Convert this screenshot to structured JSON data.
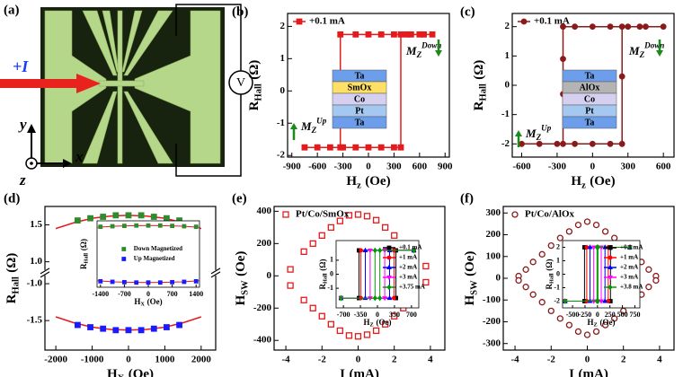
{
  "device": {
    "panel": "(a)",
    "current": "+I",
    "meter": "V",
    "axes": [
      "y",
      "x",
      "z"
    ]
  },
  "chart_data": [
    {
      "type": "line",
      "panel": "(b)",
      "xlabel": {
        "main": "H",
        "sub": "z",
        "unit": "(Oe)"
      },
      "ylabel": {
        "main": "R",
        "sub": "Hall",
        "unit": "(Ω)"
      },
      "xlim": [
        -950,
        950
      ],
      "ylim": [
        -2.05,
        2.4
      ],
      "xticks": [
        -900,
        -600,
        -300,
        0,
        300,
        600,
        900
      ],
      "yticks": [
        -2,
        -1,
        0,
        1,
        2
      ],
      "legend": "upper left",
      "series": [
        {
          "name": "+0.1 mA",
          "color": "#e41a1c",
          "marker": "square",
          "x": [
            -750,
            -600,
            -450,
            -300,
            -150,
            0,
            150,
            300,
            380,
            380,
            500,
            650,
            750,
            600,
            450,
            300,
            150,
            0,
            -150,
            -330,
            -330
          ],
          "values": [
            -1.75,
            -1.75,
            -1.75,
            -1.75,
            -1.75,
            -1.75,
            -1.75,
            -1.75,
            -1.75,
            1.75,
            1.75,
            1.75,
            1.75,
            1.75,
            1.75,
            1.75,
            1.75,
            1.75,
            1.75,
            1.75,
            -1.75
          ]
        }
      ],
      "stack": [
        {
          "label": "Ta",
          "color": "#6d9eeb"
        },
        {
          "label": "SmOx",
          "color": "#ffe066"
        },
        {
          "label": "Co",
          "color": "#d5d0f0"
        },
        {
          "label": "Pt",
          "color": "#a4c8f0"
        },
        {
          "label": "Ta",
          "color": "#6d9eeb"
        }
      ],
      "annotations": [
        {
          "main": "M",
          "sub": "Z",
          "sup": "Down"
        },
        {
          "main": "M",
          "sub": "Z",
          "sup": "Up"
        }
      ]
    },
    {
      "type": "line",
      "panel": "(c)",
      "xlabel": {
        "main": "H",
        "sub": "z",
        "unit": "(Oe)"
      },
      "ylabel": {
        "main": "R",
        "sub": "Hall",
        "unit": "(Ω)"
      },
      "xlim": [
        -680,
        690
      ],
      "ylim": [
        -2.45,
        2.45
      ],
      "xticks": [
        -600,
        -300,
        0,
        300,
        600
      ],
      "yticks": [
        -2,
        -1,
        0,
        1,
        2
      ],
      "legend": "upper left",
      "series": [
        {
          "name": "+0.1 mA",
          "color": "#8b1a1a",
          "marker": "circle",
          "x": [
            -600,
            -450,
            -300,
            -150,
            0,
            150,
            250,
            250,
            250,
            400,
            600,
            450,
            300,
            150,
            0,
            -150,
            -250,
            -250,
            -250,
            -250
          ],
          "values": [
            -2,
            -2,
            -2,
            -2,
            -2,
            -2,
            -2,
            0.3,
            2,
            2,
            2,
            2,
            2,
            2,
            2,
            2,
            2,
            0.9,
            -0.3,
            -2
          ]
        }
      ],
      "stack": [
        {
          "label": "Ta",
          "color": "#6d9eeb"
        },
        {
          "label": "AlOx",
          "color": "#b4b4b4"
        },
        {
          "label": "Co",
          "color": "#d5d0f0"
        },
        {
          "label": "Pt",
          "color": "#a4c8f0"
        },
        {
          "label": "Ta",
          "color": "#6d9eeb"
        }
      ],
      "annotations": [
        {
          "main": "M",
          "sub": "Z",
          "sup": "Down"
        },
        {
          "main": "M",
          "sub": "Z",
          "sup": "Up"
        }
      ]
    },
    {
      "type": "line",
      "panel": "(d)",
      "xlabel": {
        "main": "H",
        "sub": "X",
        "unit": "(Oe)"
      },
      "ylabel": {
        "main": "R",
        "sub": "Hall",
        "unit": "(Ω)"
      },
      "xlim": [
        -2300,
        2400
      ],
      "ylim": [
        -1.9,
        1.75
      ],
      "ybreak": [
        -0.9,
        0.9
      ],
      "xticks": [
        -2000,
        -1000,
        0,
        1000,
        2000
      ],
      "yticks": [
        -1.5,
        {
          "value": -1,
          "label": "-1.0"
        },
        {
          "value": 1,
          "label": "1.0"
        },
        1.5
      ],
      "series": [
        {
          "color": "#e41a1c",
          "marker": "none",
          "x": [
            -2000,
            -1500,
            -1000,
            -500,
            0,
            500,
            1000,
            1500,
            2000
          ],
          "values": [
            1.45,
            1.53,
            1.59,
            1.62,
            1.63,
            1.62,
            1.59,
            1.53,
            1.45
          ]
        },
        {
          "color": "#e41a1c",
          "marker": "none",
          "x": [
            -2000,
            -1500,
            -1000,
            -500,
            0,
            500,
            1000,
            1500,
            2000
          ],
          "values": [
            -1.45,
            -1.53,
            -1.59,
            -1.62,
            -1.63,
            -1.62,
            -1.59,
            -1.53,
            -1.45
          ]
        },
        {
          "name": "Down Magnetized",
          "color": "#2e8b2e",
          "marker": "square",
          "line": false,
          "x": [
            -1400,
            -1050,
            -700,
            -350,
            0,
            350,
            700,
            1050,
            1400
          ],
          "values": [
            1.56,
            1.59,
            1.61,
            1.63,
            1.63,
            1.63,
            1.61,
            1.59,
            1.56
          ]
        },
        {
          "name": "Up Magnetized",
          "color": "#1a1aff",
          "marker": "square",
          "line": false,
          "x": [
            -1400,
            -1050,
            -700,
            -350,
            0,
            350,
            700,
            1050,
            1400
          ],
          "values": [
            -1.56,
            -1.59,
            -1.61,
            -1.63,
            -1.63,
            -1.63,
            -1.61,
            -1.59,
            -1.56
          ]
        }
      ],
      "inset": {
        "type": "line",
        "xlim": [
          -1500,
          1500
        ],
        "ylim": [
          -1.9,
          1.9
        ],
        "xticks": [
          -1400,
          -700,
          0,
          700,
          1400
        ],
        "xlabel": {
          "main": "H",
          "sub": "X",
          "unit": "(Oe)"
        },
        "ylabel": {
          "main": "R",
          "sub": "Hall",
          "unit": "(Ω)"
        },
        "legend": "center"
      }
    },
    {
      "type": "scatter",
      "panel": "(e)",
      "xlabel": {
        "main": "I",
        "unit": "(mA)"
      },
      "ylabel": {
        "main": "H",
        "sub": "SW",
        "unit": "(Oe)"
      },
      "xlim": [
        -4.65,
        4.8
      ],
      "ylim": [
        -460,
        430
      ],
      "xticks": [
        -4,
        -2,
        0,
        2,
        4
      ],
      "yticks": [
        -400,
        -200,
        0,
        200,
        400
      ],
      "legend": "upper left",
      "series": [
        {
          "name": "Pt/Co/SmOx",
          "color": "#e41a1c",
          "marker": "square",
          "open": true,
          "x": [
            -3.75,
            -3,
            -2.5,
            -2,
            -1.5,
            -1,
            -0.5,
            0,
            0.5,
            1,
            1.5,
            2,
            2.5,
            3,
            3.75,
            3.75,
            3,
            2.5,
            2,
            1.5,
            1,
            0.5,
            0,
            -0.5,
            -1,
            -1.5,
            -2,
            -2.5,
            -3,
            -3.75
          ],
          "values": [
            40,
            150,
            200,
            250,
            300,
            340,
            375,
            380,
            370,
            345,
            300,
            250,
            200,
            150,
            60,
            -40,
            -150,
            -200,
            -250,
            -300,
            -340,
            -365,
            -375,
            -370,
            -340,
            -300,
            -250,
            -200,
            -150,
            -60
          ]
        }
      ],
      "inset": {
        "type": "line",
        "xlim": [
          -850,
          850
        ],
        "ylim": [
          -2.4,
          2.4
        ],
        "xticks": [
          -700,
          -350,
          0,
          350,
          700
        ],
        "yticks": [
          -1,
          0,
          1
        ],
        "xlabel": {
          "main": "H",
          "sub": "Z",
          "unit": "(Oe)"
        },
        "ylabel": {
          "main": "R",
          "sub": "Hall",
          "unit": "(Ω)"
        },
        "legend": "right",
        "series": [
          {
            "name": "+0.1 mA",
            "color": "#000000",
            "marker": "square",
            "x": [
              -750,
              380,
              380,
              750,
              -380,
              -380
            ],
            "values": [
              -1.7,
              -1.7,
              1.7,
              1.7,
              1.7,
              -1.7
            ]
          },
          {
            "name": "+1 mA",
            "color": "#ff0000",
            "marker": "circle",
            "x": [
              -750,
              340,
              340,
              750,
              -340,
              -340
            ],
            "values": [
              -1.7,
              -1.7,
              1.7,
              1.7,
              1.7,
              -1.7
            ]
          },
          {
            "name": "+2 mA",
            "color": "#0000ff",
            "marker": "triangle-up",
            "x": [
              -750,
              250,
              250,
              750,
              -250,
              -250
            ],
            "values": [
              -1.7,
              -1.7,
              1.7,
              1.7,
              1.7,
              -1.7
            ]
          },
          {
            "name": "+3 mA",
            "color": "#ff00ff",
            "marker": "triangle-down",
            "x": [
              -750,
              150,
              150,
              750,
              -150,
              -150
            ],
            "values": [
              -1.7,
              -1.7,
              1.7,
              1.7,
              1.7,
              -1.7
            ]
          },
          {
            "name": "+3.75 mA",
            "color": "#009900",
            "marker": "diamond",
            "x": [
              -750,
              50,
              50,
              750,
              -50,
              -50
            ],
            "values": [
              -1.7,
              -1.7,
              1.7,
              1.7,
              1.7,
              -1.7
            ]
          }
        ]
      }
    },
    {
      "type": "scatter",
      "panel": "(f)",
      "xlabel": {
        "main": "I",
        "unit": "(mA)"
      },
      "ylabel": {
        "main": "H",
        "sub": "SW",
        "unit": "(Oe)"
      },
      "xlim": [
        -4.65,
        4.8
      ],
      "ylim": [
        -330,
        330
      ],
      "xticks": [
        -4,
        -2,
        0,
        2,
        4
      ],
      "yticks": [
        -300,
        -200,
        -100,
        0,
        100,
        200,
        300
      ],
      "legend": "upper left",
      "series": [
        {
          "name": "Pt/Co/AlOx",
          "color": "#8b1a1a",
          "marker": "circle",
          "open": true,
          "x": [
            -3.8,
            -3.4,
            -3,
            -2.5,
            -2,
            -1.5,
            -1,
            -0.5,
            0,
            0.5,
            1,
            1.5,
            2,
            2.5,
            3,
            3.4,
            3.8,
            3.8,
            3.4,
            3,
            2.5,
            2,
            1.5,
            1,
            0.5,
            0,
            -0.5,
            -1,
            -1.5,
            -2,
            -2.5,
            -3,
            -3.4,
            -3.8
          ],
          "values": [
            10,
            40,
            75,
            110,
            150,
            185,
            215,
            245,
            260,
            245,
            215,
            185,
            150,
            110,
            75,
            40,
            10,
            -10,
            -40,
            -75,
            -110,
            -150,
            -185,
            -215,
            -245,
            -260,
            -245,
            -215,
            -185,
            -150,
            -110,
            -75,
            -40,
            -10
          ]
        }
      ],
      "inset": {
        "type": "line",
        "xlim": [
          -700,
          850
        ],
        "ylim": [
          -2.5,
          2.5
        ],
        "xticks": [
          -500,
          -250,
          0,
          250,
          500,
          750
        ],
        "yticks": [
          -2,
          -1,
          0,
          1,
          2
        ],
        "xlabel": {
          "main": "H",
          "sub": "Z",
          "unit": "(Oe)"
        },
        "ylabel": {
          "main": "R",
          "sub": "Hall",
          "unit": "(Ω)"
        },
        "legend": "right",
        "series": [
          {
            "name": "+0.1 mA",
            "color": "#000000",
            "marker": "square",
            "x": [
              -650,
              260,
              260,
              650,
              -260,
              -260
            ],
            "values": [
              -2,
              -2,
              2,
              2,
              2,
              -2
            ]
          },
          {
            "name": "+1 mA",
            "color": "#ff0000",
            "marker": "circle",
            "x": [
              -650,
              215,
              215,
              650,
              -215,
              -215
            ],
            "values": [
              -2,
              -2,
              2,
              2,
              2,
              -2
            ]
          },
          {
            "name": "+2 mA",
            "color": "#0000ff",
            "marker": "triangle-up",
            "x": [
              -650,
              150,
              150,
              650,
              -150,
              -150
            ],
            "values": [
              -2,
              -2,
              2,
              2,
              2,
              -2
            ]
          },
          {
            "name": "+3 mA",
            "color": "#ff00ff",
            "marker": "triangle-down",
            "x": [
              -650,
              75,
              75,
              650,
              -75,
              -75
            ],
            "values": [
              -2,
              -2,
              2,
              2,
              2,
              -2
            ]
          },
          {
            "name": "+3.8 mA",
            "color": "#009900",
            "marker": "diamond",
            "x": [
              -650,
              10,
              10,
              650,
              -10,
              -10
            ],
            "values": [
              -2,
              -2,
              2,
              2,
              2,
              -2
            ]
          }
        ]
      }
    }
  ]
}
